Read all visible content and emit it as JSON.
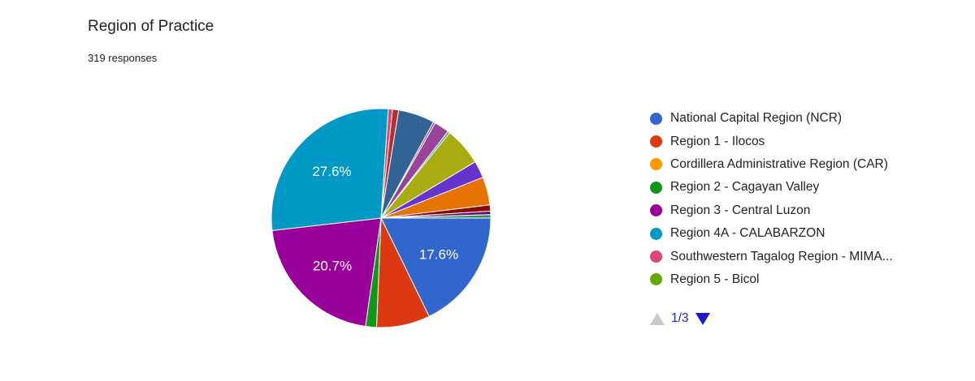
{
  "header": {
    "title": "Region of Practice",
    "responses": "319 responses"
  },
  "chart_data": {
    "type": "pie",
    "title": "Region of Practice",
    "slices": [
      {
        "label": "National Capital Region (NCR)",
        "value": 17.6,
        "color": "#3366cc",
        "display": "17.6%"
      },
      {
        "label": "Region 1 - Ilocos",
        "value": 7.8,
        "color": "#dc3912",
        "display": ""
      },
      {
        "label": "Cordillera Administrative Region (CAR)",
        "value": 0.0,
        "color": "#ff9900",
        "display": ""
      },
      {
        "label": "Region 2 - Cagayan Valley",
        "value": 1.6,
        "color": "#109618",
        "display": ""
      },
      {
        "label": "Region 3 - Central Luzon",
        "value": 20.7,
        "color": "#990099",
        "display": "20.7%"
      },
      {
        "label": "Region 4A - CALABARZON",
        "value": 27.6,
        "color": "#0099c6",
        "display": "27.6%"
      },
      {
        "label": "Southwestern Tagalog Region - MIMAROPA",
        "value": 0.6,
        "color": "#dd4477",
        "display": ""
      },
      {
        "label": "Region 5 - Bicol",
        "value": 0.0,
        "color": "#66aa00",
        "display": ""
      },
      {
        "label": "",
        "value": 0.9,
        "color": "#b82e2e",
        "display": ""
      },
      {
        "label": "",
        "value": 5.3,
        "color": "#316395",
        "display": ""
      },
      {
        "label": "",
        "value": 0.3,
        "color": "#994499",
        "display": ""
      },
      {
        "label": "",
        "value": 2.2,
        "color": "#994499",
        "display": ""
      },
      {
        "label": "",
        "value": 0.3,
        "color": "#22aa99",
        "display": ""
      },
      {
        "label": "",
        "value": 5.6,
        "color": "#aaaa11",
        "display": ""
      },
      {
        "label": "",
        "value": 2.5,
        "color": "#6633cc",
        "display": ""
      },
      {
        "label": "",
        "value": 4.1,
        "color": "#e67300",
        "display": ""
      },
      {
        "label": "",
        "value": 0.9,
        "color": "#8b0707",
        "display": ""
      },
      {
        "label": "",
        "value": 0.5,
        "color": "#651067",
        "display": ""
      },
      {
        "label": "",
        "value": 0.5,
        "color": "#329262",
        "display": ""
      }
    ],
    "legend_position": "right"
  },
  "legend": {
    "items": [
      {
        "label": "National Capital Region (NCR)",
        "color": "#3366cc"
      },
      {
        "label": "Region 1 - Ilocos",
        "color": "#dc3912"
      },
      {
        "label": "Cordillera Administrative Region (CAR)",
        "color": "#ff9900"
      },
      {
        "label": "Region 2 - Cagayan Valley",
        "color": "#109618"
      },
      {
        "label": "Region 3 - Central Luzon",
        "color": "#990099"
      },
      {
        "label": "Region 4A - CALABARZON",
        "color": "#0099c6"
      },
      {
        "label": "Southwestern Tagalog Region - MIMA...",
        "color": "#dd4477"
      },
      {
        "label": "Region 5 - Bicol",
        "color": "#66aa00"
      }
    ],
    "page": "1/3"
  }
}
